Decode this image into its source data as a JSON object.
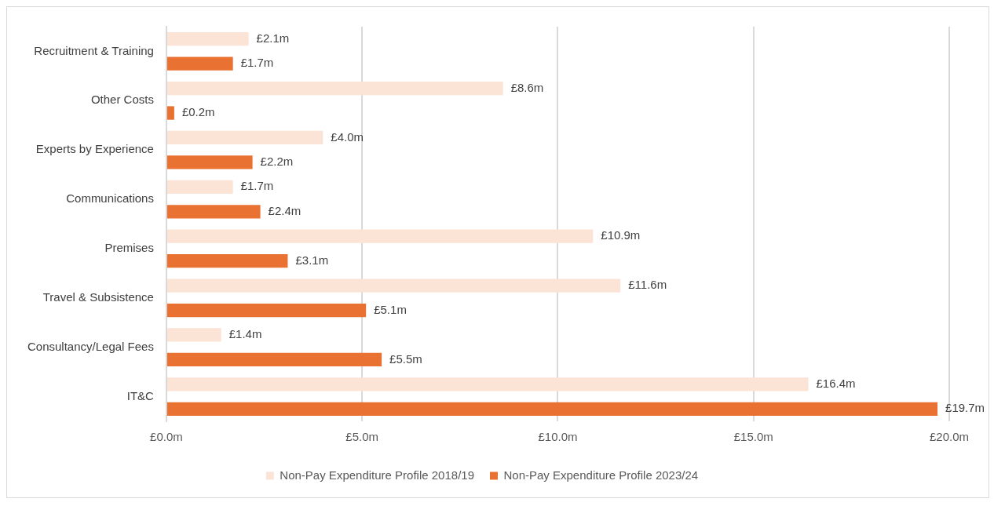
{
  "chart_data": {
    "type": "bar",
    "orientation": "horizontal",
    "categories": [
      "Recruitment & Training",
      "Other Costs",
      "Experts by Experience",
      "Communications",
      "Premises",
      "Travel & Subsistence",
      "Consultancy/Legal Fees",
      "IT&C"
    ],
    "series": [
      {
        "name": "Non-Pay Expenditure Profile 2018/19",
        "color": "#fbe3d6",
        "values": [
          2.1,
          8.6,
          4.0,
          1.7,
          10.9,
          11.6,
          1.4,
          16.4
        ],
        "value_labels": [
          "£2.1m",
          "£8.6m",
          "£4.0m",
          "£1.7m",
          "£10.9m",
          "£11.6m",
          "£1.4m",
          "£16.4m"
        ]
      },
      {
        "name": "Non-Pay Expenditure Profile 2023/24",
        "color": "#e97132",
        "values": [
          1.7,
          0.2,
          2.2,
          2.4,
          3.1,
          5.1,
          5.5,
          19.7
        ],
        "value_labels": [
          "£1.7m",
          "£0.2m",
          "£2.2m",
          "£2.4m",
          "£3.1m",
          "£5.1m",
          "£5.5m",
          "£19.7m"
        ]
      }
    ],
    "xlim": [
      0,
      20
    ],
    "xticks": [
      {
        "value": 0,
        "label": "£0.0m"
      },
      {
        "value": 5,
        "label": "£5.0m"
      },
      {
        "value": 10,
        "label": "£10.0m"
      },
      {
        "value": 15,
        "label": "£15.0m"
      },
      {
        "value": 20,
        "label": "£20.0m"
      }
    ],
    "grid": "x",
    "legend": "bottom"
  }
}
